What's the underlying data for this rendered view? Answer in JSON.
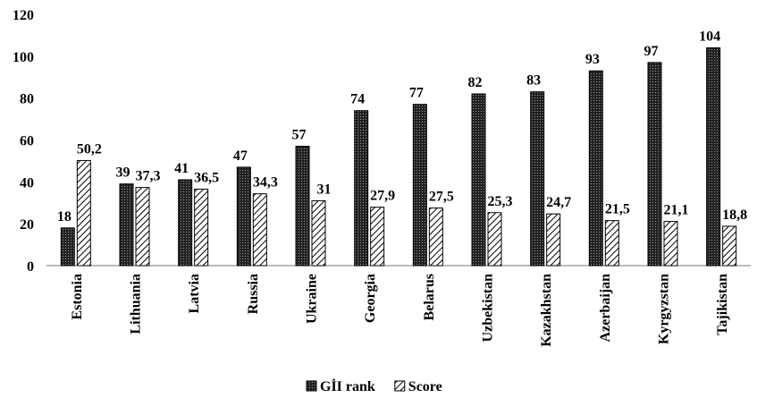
{
  "chart_data": {
    "type": "bar",
    "categories": [
      "Estonia",
      "Lithuania",
      "Latvia",
      "Russia",
      "Ukraine",
      "Georgia",
      "Belarus",
      "Uzbekistan",
      "Kazakhstan",
      "Azerbaijan",
      "Kyrgyzstan",
      "Tajikistan"
    ],
    "series": [
      {
        "name": "GİI rank",
        "color": "#222222",
        "values": [
          18,
          39,
          41,
          47,
          57,
          74,
          77,
          82,
          83,
          93,
          97,
          104
        ]
      },
      {
        "name": "Score",
        "color": "#000000",
        "values": [
          50.2,
          37.3,
          36.5,
          34.3,
          31,
          27.9,
          27.5,
          25.3,
          24.7,
          21.5,
          21.1,
          18.8
        ],
        "value_labels": [
          "50,2",
          "37,3",
          "36,5",
          "34,3",
          "31",
          "27,9",
          "27,5",
          "25,3",
          "24,7",
          "21,5",
          "21,1",
          "18,8"
        ]
      }
    ],
    "ylim": [
      0,
      120
    ],
    "yticks": [
      0,
      20,
      40,
      60,
      80,
      100,
      120
    ],
    "grid": false,
    "legend": "bottom"
  }
}
